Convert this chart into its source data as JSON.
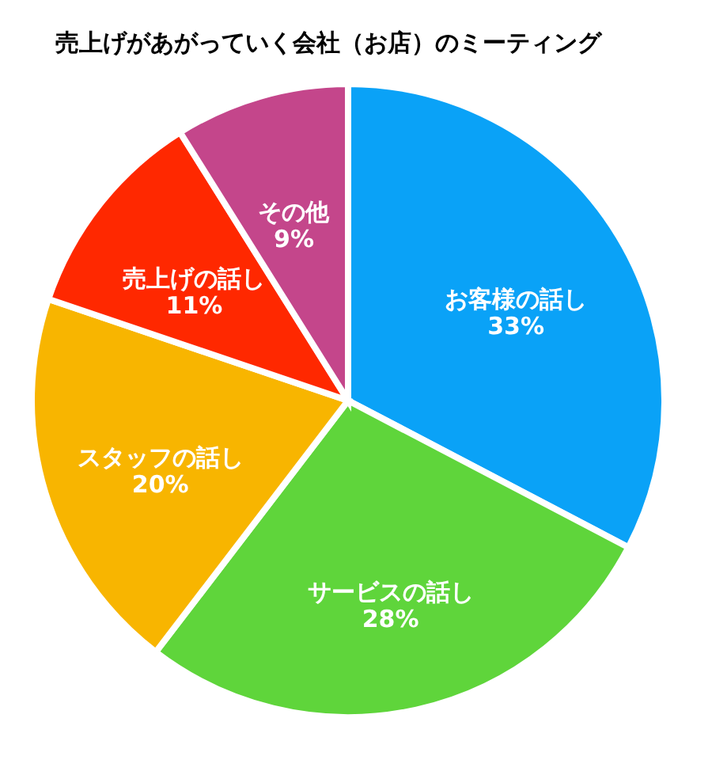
{
  "chart_data": {
    "type": "pie",
    "title": "売上げがあがっていく会社（お店）のミーティング",
    "categories": [
      "お客様の話し",
      "サービスの話し",
      "スタッフの話し",
      "売上げの話し",
      "その他"
    ],
    "values": [
      33,
      28,
      20,
      11,
      9
    ],
    "value_labels": [
      "33%",
      "28%",
      "20%",
      "11%",
      "9%"
    ],
    "colors": [
      "#0aa2f7",
      "#5fd53b",
      "#f8b500",
      "#ff2800",
      "#c4468b"
    ],
    "legend": false
  }
}
